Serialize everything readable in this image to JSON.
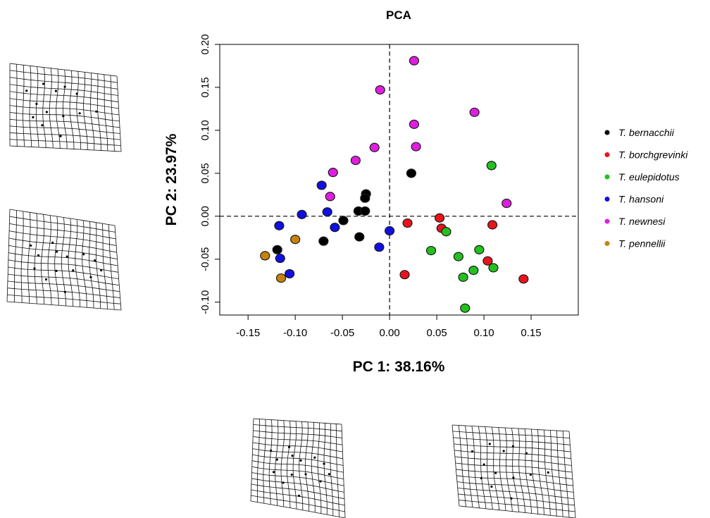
{
  "chart_data": {
    "type": "scatter",
    "title": "PCA",
    "xlabel": "PC 1: 38.16%",
    "ylabel": "PC 2: 23.97%",
    "xlim": [
      -0.18,
      0.2
    ],
    "ylim": [
      -0.115,
      0.2
    ],
    "x_ticks": [
      "-0.15",
      "-0.10",
      "-0.05",
      "0.00",
      "0.05",
      "0.10",
      "0.15"
    ],
    "y_ticks": [
      "-0.10",
      "-0.05",
      "0.00",
      "0.05",
      "0.10",
      "0.15",
      "0.20"
    ],
    "reference_lines": {
      "x": 0,
      "y": 0,
      "style": "dashed"
    },
    "legend_position": "right",
    "series": [
      {
        "name": "T. bernacchii",
        "color": "#000000",
        "points": [
          [
            0.023,
            0.05
          ],
          [
            -0.025,
            0.026
          ],
          [
            -0.026,
            0.021
          ],
          [
            -0.033,
            0.006
          ],
          [
            -0.026,
            0.006
          ],
          [
            -0.049,
            -0.005
          ],
          [
            -0.032,
            -0.024
          ],
          [
            -0.07,
            -0.029
          ],
          [
            -0.119,
            -0.039
          ]
        ]
      },
      {
        "name": "T. borchgrevinki",
        "color": "#e8141b",
        "points": [
          [
            0.053,
            -0.002
          ],
          [
            0.019,
            -0.008
          ],
          [
            0.055,
            -0.014
          ],
          [
            0.109,
            -0.01
          ],
          [
            0.104,
            -0.052
          ],
          [
            0.016,
            -0.068
          ],
          [
            0.142,
            -0.073
          ]
        ]
      },
      {
        "name": "T. eulepidotus",
        "color": "#22c11e",
        "points": [
          [
            0.108,
            0.059
          ],
          [
            0.06,
            -0.018
          ],
          [
            0.044,
            -0.04
          ],
          [
            0.073,
            -0.047
          ],
          [
            0.095,
            -0.039
          ],
          [
            0.11,
            -0.06
          ],
          [
            0.089,
            -0.063
          ],
          [
            0.078,
            -0.071
          ],
          [
            0.08,
            -0.107
          ]
        ]
      },
      {
        "name": "T. hansoni",
        "color": "#1010e0",
        "points": [
          [
            -0.072,
            0.036
          ],
          [
            -0.066,
            0.005
          ],
          [
            -0.093,
            0.002
          ],
          [
            -0.117,
            -0.011
          ],
          [
            -0.058,
            -0.013
          ],
          [
            0.0,
            -0.017
          ],
          [
            -0.011,
            -0.036
          ],
          [
            -0.116,
            -0.049
          ],
          [
            -0.106,
            -0.067
          ]
        ]
      },
      {
        "name": "T. newnesi",
        "color": "#e01ee0",
        "points": [
          [
            0.026,
            0.181
          ],
          [
            -0.01,
            0.147
          ],
          [
            0.09,
            0.121
          ],
          [
            0.026,
            0.107
          ],
          [
            0.028,
            0.081
          ],
          [
            -0.016,
            0.08
          ],
          [
            -0.036,
            0.065
          ],
          [
            -0.06,
            0.051
          ],
          [
            -0.063,
            0.023
          ],
          [
            0.124,
            0.015
          ]
        ]
      },
      {
        "name": "T. pennellii",
        "color": "#c8820a",
        "points": [
          [
            -0.1,
            -0.027
          ],
          [
            -0.132,
            -0.046
          ],
          [
            -0.115,
            -0.072
          ]
        ]
      }
    ]
  }
}
